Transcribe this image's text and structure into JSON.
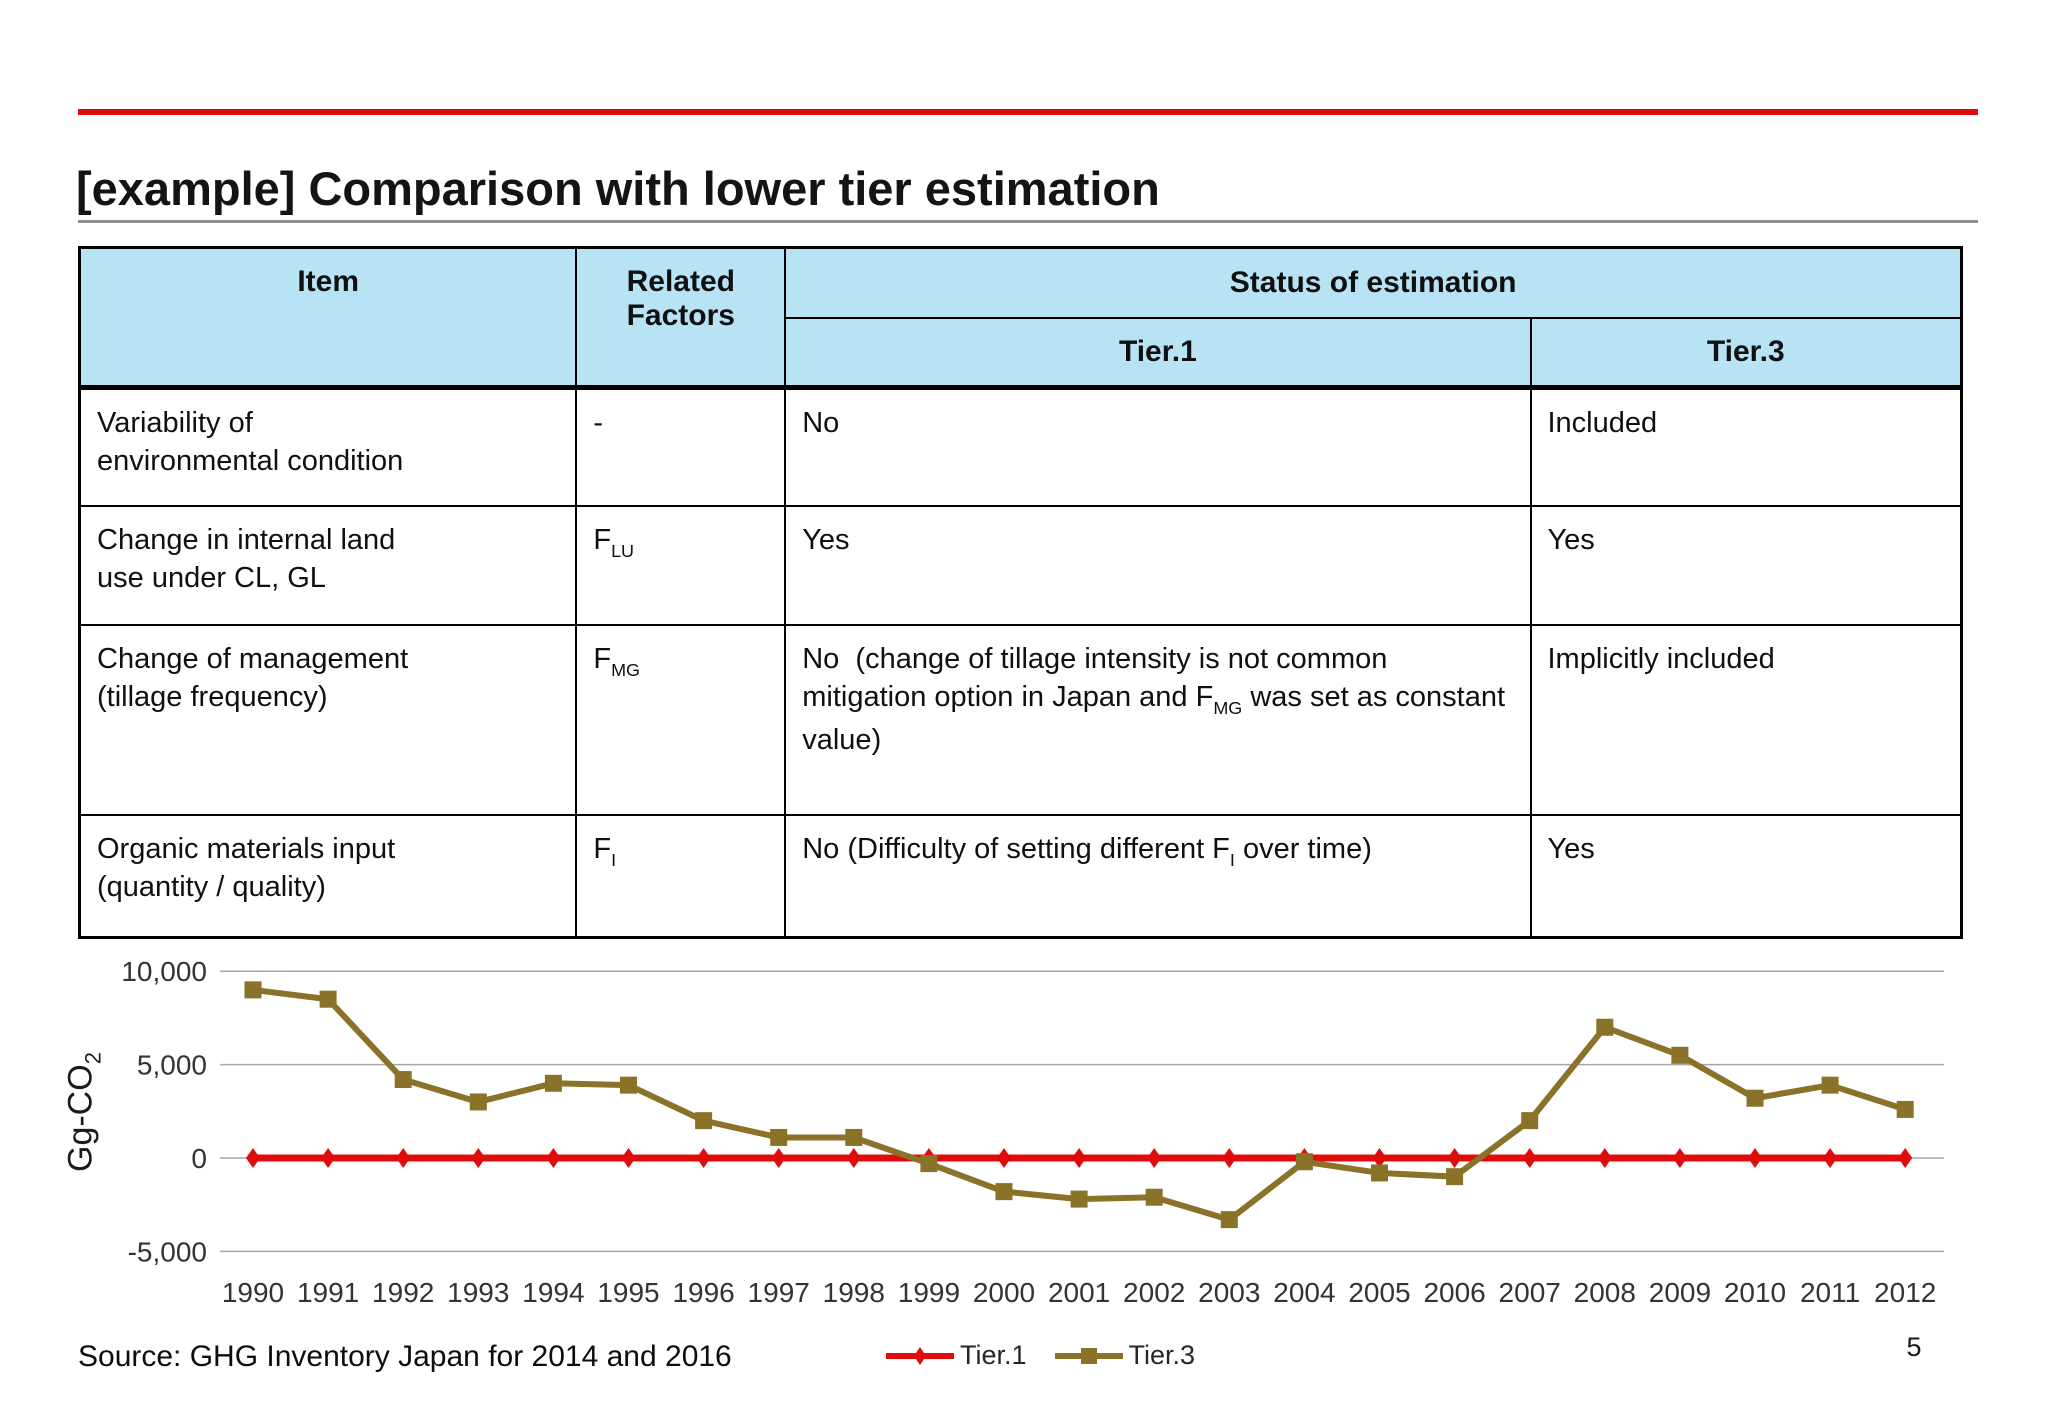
{
  "slide": {
    "title": "[example] Comparison with lower tier estimation",
    "source": "Source: GHG Inventory Japan for 2014 and 2016",
    "page_number": "5"
  },
  "colors": {
    "accent_rule": "#d90d0d",
    "title_underline": "#8f8f8f",
    "table_header_bg": "#b8e3f4",
    "tier1_red": "#e00c0c",
    "tier3_olive": "#8a7228",
    "gridline": "#a6a6a6"
  },
  "table": {
    "headers": {
      "item": "Item",
      "related_factors": "Related Factors",
      "status": "Status of estimation",
      "tier1": "Tier.1",
      "tier3": "Tier.3"
    },
    "rows": [
      {
        "item_l1": "Variability of",
        "item_l2": "environmental condition",
        "factor_base": "-",
        "factor_sub": "",
        "tier1_p1": "No",
        "tier1_sub": "",
        "tier1_p2": "",
        "tier3": "Included"
      },
      {
        "item_l1": "Change in internal land",
        "item_l2": "use under CL, GL",
        "factor_base": "F",
        "factor_sub": "LU",
        "tier1_p1": "Yes",
        "tier1_sub": "",
        "tier1_p2": "",
        "tier3": "Yes"
      },
      {
        "item_l1": "Change of management",
        "item_l2": "(tillage frequency)",
        "factor_base": "F",
        "factor_sub": "MG",
        "tier1_p1": "No  (change of tillage intensity is not common mitigation option in Japan and F",
        "tier1_sub": "MG",
        "tier1_p2": " was set as constant value)",
        "tier3": "Implicitly included"
      },
      {
        "item_l1": "Organic materials input",
        "item_l2": "(quantity / quality)",
        "factor_base": "F",
        "factor_sub": "I",
        "tier1_p1": "No (Difficulty of setting different F",
        "tier1_sub": "I",
        "tier1_p2": " over time)",
        "tier3": "Yes"
      }
    ]
  },
  "chart_data": {
    "type": "line",
    "categories": [
      "1990",
      "1991",
      "1992",
      "1993",
      "1994",
      "1995",
      "1996",
      "1997",
      "1998",
      "1999",
      "2000",
      "2001",
      "2002",
      "2003",
      "2004",
      "2005",
      "2006",
      "2007",
      "2008",
      "2009",
      "2010",
      "2011",
      "2012"
    ],
    "series": [
      {
        "name": "Tier.1",
        "color": "#e00c0c",
        "marker": "diamond",
        "line_width": 7,
        "values": [
          0,
          0,
          0,
          0,
          0,
          0,
          0,
          0,
          0,
          0,
          0,
          0,
          0,
          0,
          0,
          0,
          0,
          0,
          0,
          0,
          0,
          0,
          0
        ]
      },
      {
        "name": "Tier.3",
        "color": "#8a7228",
        "marker": "square",
        "line_width": 6,
        "values": [
          9000,
          8500,
          4200,
          3000,
          4000,
          3900,
          2000,
          1100,
          1100,
          -300,
          -1800,
          -2200,
          -2100,
          -3300,
          -200,
          -800,
          -1000,
          2000,
          7000,
          5500,
          3200,
          3900,
          2600
        ]
      }
    ],
    "ylabel_base": "Gg-CO",
    "ylabel_sub": "2",
    "ylim": [
      -5000,
      10000
    ],
    "yticks": [
      {
        "value": 10000,
        "label": "10,000"
      },
      {
        "value": 5000,
        "label": "5,000"
      },
      {
        "value": 0,
        "label": "0"
      },
      {
        "value": -5000,
        "label": "-5,000"
      }
    ],
    "grid": true,
    "legend_position": "bottom"
  }
}
